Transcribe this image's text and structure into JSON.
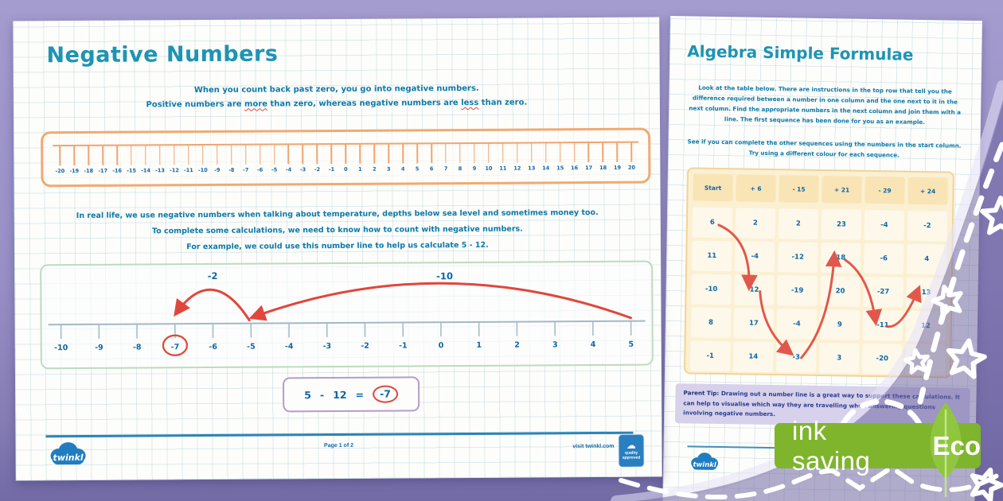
{
  "colors": {
    "accent_teal": "#1d94b3",
    "text_blue": "#0d79a8",
    "number_blue": "#0f66a6",
    "red": "#e0463c",
    "orange": "#f0aa72",
    "green_border": "#bedabf",
    "purple_border": "#b79cc7",
    "badge_green": "#7eb52c",
    "bg_purple": "#968ec4"
  },
  "left_page": {
    "title": "Negative Numbers",
    "intro_line1": "When you count back past zero, you go into negative numbers.",
    "intro_line2_parts": [
      "Positive numbers are ",
      "more",
      " than zero, whereas negative numbers are ",
      "less",
      " than zero."
    ],
    "numberline1": {
      "labels": [
        "-20",
        "-19",
        "-18",
        "-17",
        "-16",
        "-15",
        "-14",
        "-13",
        "-12",
        "-11",
        "-10",
        "-9",
        "-8",
        "-7",
        "-6",
        "-5",
        "-4",
        "-3",
        "-2",
        "-1",
        "0",
        "1",
        "2",
        "3",
        "4",
        "5",
        "6",
        "7",
        "8",
        "9",
        "10",
        "11",
        "12",
        "13",
        "14",
        "15",
        "16",
        "17",
        "18",
        "19",
        "20"
      ]
    },
    "body_line1": "In real life, we use negative numbers when talking about temperature, depths below sea level and sometimes money too.",
    "body_line2": "To complete some calculations, we need to know how to count with negative numbers.",
    "body_line3": "For example, we could use this number line to help us calculate 5 - 12.",
    "numberline2": {
      "labels": [
        "-10",
        "-9",
        "-8",
        "-7",
        "-6",
        "-5",
        "-4",
        "-3",
        "-2",
        "-1",
        "0",
        "1",
        "2",
        "3",
        "4",
        "5"
      ],
      "jumps": [
        {
          "label": "-10",
          "from": 5,
          "to": -5
        },
        {
          "label": "-2",
          "from": -5,
          "to": -7
        }
      ],
      "circled_value": -7
    },
    "equation": {
      "a": "5",
      "op": "-",
      "b": "12",
      "eq": "=",
      "result": "-7"
    },
    "footer": {
      "logo": "twinkl",
      "page_label": "Page 1 of 2",
      "site": "visit twinkl.com",
      "badge_cloud": "twinkl",
      "badge_text": "quality approved"
    }
  },
  "right_page": {
    "title": "Algebra Simple Formulae",
    "para1": "Look at the table below. There are instructions in the top row that tell you the difference required between a number in one column and the one next to it in the next column. Find the appropriate numbers in the next column and join them with a line. The first sequence has been done for you as an example.",
    "para2": "See if you can complete the other sequences using the numbers in the start column. Try using a different colour for each sequence.",
    "table": {
      "headers": [
        "Start",
        "+ 6",
        "- 15",
        "+ 21",
        "- 29",
        "+ 24"
      ],
      "rows": [
        [
          "6",
          "2",
          "2",
          "23",
          "-4",
          "-2"
        ],
        [
          "11",
          "-4",
          "-12",
          "18",
          "-6",
          "4"
        ],
        [
          "-10",
          "12",
          "-19",
          "20",
          "-27",
          "13"
        ],
        [
          "8",
          "17",
          "-4",
          "9",
          "-11",
          "12"
        ],
        [
          "-1",
          "14",
          "-3",
          "3",
          "-20",
          ""
        ]
      ],
      "example_path_cells": [
        [
          0,
          0
        ],
        [
          2,
          1
        ],
        [
          4,
          2
        ],
        [
          1,
          3
        ],
        [
          3,
          4
        ],
        [
          2,
          5
        ]
      ]
    },
    "parent_tip_label": "Parent Tip:",
    "parent_tip_text": " Drawing out a number line is a great way to support these calculations. It can help to visualise which way they are travelling when answering questions involving negative numbers."
  },
  "badge": {
    "ink": "ink saving",
    "eco": "Eco"
  }
}
